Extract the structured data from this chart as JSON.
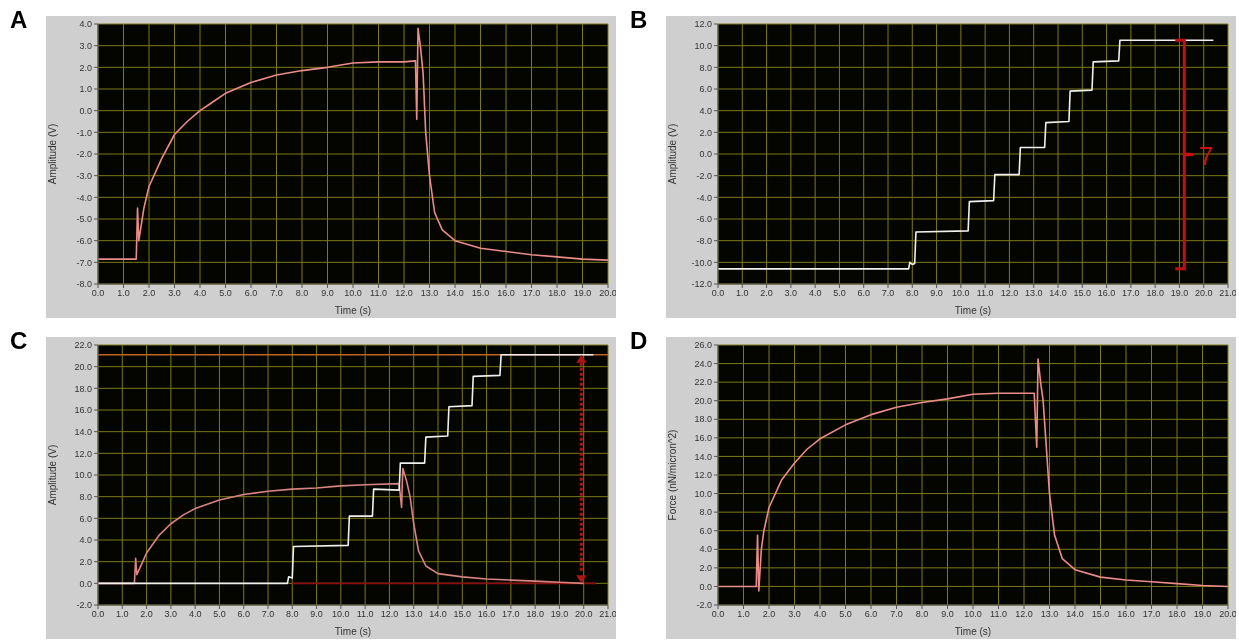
{
  "chart_data": [
    {
      "type": "line",
      "title": "A",
      "xlabel": "Time (s)",
      "ylabel": "Amplitude (V)",
      "grid": true,
      "marker": "none",
      "line_style": "solid",
      "xlim": [
        0,
        20
      ],
      "ylim": [
        -8,
        4
      ],
      "xticks": [
        {
          "value": 0,
          "label": "0.0"
        },
        {
          "value": 1,
          "label": "1.0"
        },
        {
          "value": 2,
          "label": "2.0"
        },
        {
          "value": 3,
          "label": "3.0"
        },
        {
          "value": 4,
          "label": "4.0"
        },
        {
          "value": 5,
          "label": "5.0"
        },
        {
          "value": 6,
          "label": "6.0"
        },
        {
          "value": 7,
          "label": "7.0"
        },
        {
          "value": 8,
          "label": "8.0"
        },
        {
          "value": 9,
          "label": "9.0"
        },
        {
          "value": 10,
          "label": "10.0"
        },
        {
          "value": 11,
          "label": "11.0"
        },
        {
          "value": 12,
          "label": "12.0"
        },
        {
          "value": 13,
          "label": "13.0"
        },
        {
          "value": 14,
          "label": "14.0"
        },
        {
          "value": 15,
          "label": "15.0"
        },
        {
          "value": 16,
          "label": "16.0"
        },
        {
          "value": 17,
          "label": "17.0"
        },
        {
          "value": 18,
          "label": "18.0"
        },
        {
          "value": 19,
          "label": "19.0"
        },
        {
          "value": 20,
          "label": "20.0"
        }
      ],
      "yticks": [
        {
          "value": -8,
          "label": "-8.0"
        },
        {
          "value": -7,
          "label": "-7.0"
        },
        {
          "value": -6,
          "label": "-6.0"
        },
        {
          "value": -5,
          "label": "-5.0"
        },
        {
          "value": -4,
          "label": "-4.0"
        },
        {
          "value": -3,
          "label": "-3.0"
        },
        {
          "value": -2,
          "label": "-2.0"
        },
        {
          "value": -1,
          "label": "-1.0"
        },
        {
          "value": 0,
          "label": "0.0"
        },
        {
          "value": 1,
          "label": "1.0"
        },
        {
          "value": 2,
          "label": "2.0"
        },
        {
          "value": 3,
          "label": "3.0"
        },
        {
          "value": 4,
          "label": "4.0"
        }
      ],
      "series": [
        {
          "color": "#ec8c88",
          "x": [
            0,
            1.5,
            1.55,
            1.6,
            1.8,
            2.0,
            2.5,
            3.0,
            3.5,
            4.0,
            4.5,
            5.0,
            6.0,
            7.0,
            8.0,
            9.0,
            10.0,
            11.0,
            12.0,
            12.45,
            12.5,
            12.55,
            12.65,
            12.75,
            12.85,
            13.0,
            13.2,
            13.5,
            14.0,
            15.0,
            16.0,
            17.0,
            18.0,
            19.0,
            20.0
          ],
          "values": [
            -6.85,
            -6.85,
            -4.5,
            -6.0,
            -4.5,
            -3.5,
            -2.2,
            -1.1,
            -0.5,
            0.0,
            0.4,
            0.8,
            1.3,
            1.65,
            1.85,
            2.0,
            2.2,
            2.25,
            2.25,
            2.3,
            -0.4,
            3.8,
            2.9,
            1.7,
            -1.0,
            -3.0,
            -4.7,
            -5.5,
            -6.0,
            -6.35,
            -6.5,
            -6.65,
            -6.75,
            -6.85,
            -6.9
          ]
        }
      ]
    },
    {
      "type": "line",
      "title": "B",
      "xlabel": "Time (s)",
      "ylabel": "Amplitude (V)",
      "grid": true,
      "marker": "none",
      "line_style": "solid",
      "xlim": [
        0,
        21
      ],
      "ylim": [
        -12,
        12
      ],
      "xticks": [
        {
          "value": 0,
          "label": "0.0"
        },
        {
          "value": 1,
          "label": "1.0"
        },
        {
          "value": 2,
          "label": "2.0"
        },
        {
          "value": 3,
          "label": "3.0"
        },
        {
          "value": 4,
          "label": "4.0"
        },
        {
          "value": 5,
          "label": "5.0"
        },
        {
          "value": 6,
          "label": "6.0"
        },
        {
          "value": 7,
          "label": "7.0"
        },
        {
          "value": 8,
          "label": "8.0"
        },
        {
          "value": 9,
          "label": "9.0"
        },
        {
          "value": 10,
          "label": "10.0"
        },
        {
          "value": 11,
          "label": "11.0"
        },
        {
          "value": 12,
          "label": "12.0"
        },
        {
          "value": 13,
          "label": "13.0"
        },
        {
          "value": 14,
          "label": "14.0"
        },
        {
          "value": 15,
          "label": "15.0"
        },
        {
          "value": 16,
          "label": "16.0"
        },
        {
          "value": 17,
          "label": "17.0"
        },
        {
          "value": 18,
          "label": "18.0"
        },
        {
          "value": 19,
          "label": "19.0"
        },
        {
          "value": 20,
          "label": "20.0"
        },
        {
          "value": 21,
          "label": "21.0"
        }
      ],
      "yticks": [
        {
          "value": -12,
          "label": "-12.0"
        },
        {
          "value": -10,
          "label": "-10.0"
        },
        {
          "value": -8,
          "label": "-8.0"
        },
        {
          "value": -6,
          "label": "-6.0"
        },
        {
          "value": -4,
          "label": "-4.0"
        },
        {
          "value": -2,
          "label": "-2.0"
        },
        {
          "value": 0,
          "label": "0.0"
        },
        {
          "value": 2,
          "label": "2.0"
        },
        {
          "value": 4,
          "label": "4.0"
        },
        {
          "value": 6,
          "label": "6.0"
        },
        {
          "value": 8,
          "label": "8.0"
        },
        {
          "value": 10,
          "label": "10.0"
        },
        {
          "value": 12,
          "label": "12.0"
        }
      ],
      "annotations": [
        "7"
      ],
      "series": [
        {
          "color": "#f0f0f0",
          "x": [
            0,
            7.85,
            7.9,
            8.0,
            8.1,
            8.15,
            10.3,
            10.35,
            11.35,
            11.4,
            12.4,
            12.45,
            13.45,
            13.5,
            14.45,
            14.5,
            15.4,
            15.45,
            16.5,
            16.55,
            20.4
          ],
          "values": [
            -10.6,
            -10.6,
            -10.0,
            -10.2,
            -10.1,
            -7.2,
            -7.1,
            -4.4,
            -4.3,
            -1.9,
            -1.9,
            0.6,
            0.6,
            2.9,
            3.0,
            5.8,
            5.9,
            8.5,
            8.6,
            10.5,
            10.5
          ]
        }
      ]
    },
    {
      "type": "line",
      "title": "C",
      "xlabel": "Time (s)",
      "ylabel": "Amplitude (V)",
      "grid": true,
      "marker": "none",
      "line_style": "solid",
      "xlim": [
        0,
        21
      ],
      "ylim": [
        -2,
        22
      ],
      "xticks": [
        {
          "value": 0,
          "label": "0.0"
        },
        {
          "value": 1,
          "label": "1.0"
        },
        {
          "value": 2,
          "label": "2.0"
        },
        {
          "value": 3,
          "label": "3.0"
        },
        {
          "value": 4,
          "label": "4.0"
        },
        {
          "value": 5,
          "label": "5.0"
        },
        {
          "value": 6,
          "label": "6.0"
        },
        {
          "value": 7,
          "label": "7.0"
        },
        {
          "value": 8,
          "label": "8.0"
        },
        {
          "value": 9,
          "label": "9.0"
        },
        {
          "value": 10,
          "label": "10.0"
        },
        {
          "value": 11,
          "label": "11.0"
        },
        {
          "value": 12,
          "label": "12.0"
        },
        {
          "value": 13,
          "label": "13.0"
        },
        {
          "value": 14,
          "label": "14.0"
        },
        {
          "value": 15,
          "label": "15.0"
        },
        {
          "value": 16,
          "label": "16.0"
        },
        {
          "value": 17,
          "label": "17.0"
        },
        {
          "value": 18,
          "label": "18.0"
        },
        {
          "value": 19,
          "label": "19.0"
        },
        {
          "value": 20,
          "label": "20.0"
        },
        {
          "value": 21,
          "label": "21.0"
        }
      ],
      "yticks": [
        {
          "value": -2,
          "label": "-2.0"
        },
        {
          "value": 0,
          "label": "0.0"
        },
        {
          "value": 2,
          "label": "2.0"
        },
        {
          "value": 4,
          "label": "4.0"
        },
        {
          "value": 6,
          "label": "6.0"
        },
        {
          "value": 8,
          "label": "8.0"
        },
        {
          "value": 10,
          "label": "10.0"
        },
        {
          "value": 12,
          "label": "12.0"
        },
        {
          "value": 14,
          "label": "14.0"
        },
        {
          "value": 16,
          "label": "16.0"
        },
        {
          "value": 18,
          "label": "18.0"
        },
        {
          "value": 20,
          "label": "20.0"
        },
        {
          "value": 22,
          "label": "22.0"
        }
      ],
      "ref_lines": [
        {
          "axis": "y",
          "value": 21.1,
          "color": "#c0641e"
        }
      ],
      "series": [
        {
          "color": "#8b1010",
          "x": [
            8.0,
            20.5
          ],
          "values": [
            0,
            0
          ]
        },
        {
          "color": "#d88480",
          "x": [
            0,
            1.5,
            1.55,
            1.6,
            1.8,
            2.0,
            2.5,
            3.0,
            3.5,
            4.0,
            5.0,
            6.0,
            7.0,
            8.0,
            9.0,
            10.0,
            11.0,
            12.4,
            12.5,
            12.55,
            12.7,
            12.85,
            13.0,
            13.2,
            13.5,
            14.0,
            15.0,
            16.0,
            17.0,
            18.0,
            19.0,
            20.0
          ],
          "values": [
            0,
            0,
            2.3,
            0.8,
            1.8,
            2.8,
            4.4,
            5.5,
            6.3,
            6.9,
            7.7,
            8.2,
            8.5,
            8.7,
            8.8,
            9.0,
            9.1,
            9.2,
            7.0,
            10.6,
            9.5,
            8.0,
            5.5,
            3.0,
            1.6,
            0.9,
            0.6,
            0.4,
            0.3,
            0.2,
            0.1,
            0.0
          ]
        },
        {
          "color": "#f0f0f0",
          "x": [
            0,
            7.8,
            7.85,
            8.0,
            8.05,
            10.3,
            10.35,
            11.3,
            11.35,
            12.4,
            12.45,
            13.45,
            13.5,
            14.4,
            14.45,
            15.4,
            15.45,
            16.55,
            16.6,
            20.4
          ],
          "values": [
            0,
            0,
            0.6,
            0.5,
            3.4,
            3.5,
            6.2,
            6.2,
            8.7,
            8.6,
            11.1,
            11.1,
            13.5,
            13.6,
            16.3,
            16.4,
            19.1,
            19.2,
            21.1,
            21.1
          ]
        }
      ]
    },
    {
      "type": "line",
      "title": "D",
      "xlabel": "Time (s)",
      "ylabel": "Force (nN/micron^2)",
      "grid": true,
      "marker": "none",
      "line_style": "solid",
      "xlim": [
        0,
        20
      ],
      "ylim": [
        -2,
        26
      ],
      "xticks": [
        {
          "value": 0,
          "label": "0.0"
        },
        {
          "value": 1,
          "label": "1.0"
        },
        {
          "value": 2,
          "label": "2.0"
        },
        {
          "value": 3,
          "label": "3.0"
        },
        {
          "value": 4,
          "label": "4.0"
        },
        {
          "value": 5,
          "label": "5.0"
        },
        {
          "value": 6,
          "label": "6.0"
        },
        {
          "value": 7,
          "label": "7.0"
        },
        {
          "value": 8,
          "label": "8.0"
        },
        {
          "value": 9,
          "label": "9.0"
        },
        {
          "value": 10,
          "label": "10.0"
        },
        {
          "value": 11,
          "label": "11.0"
        },
        {
          "value": 12,
          "label": "12.0"
        },
        {
          "value": 13,
          "label": "13.0"
        },
        {
          "value": 14,
          "label": "14.0"
        },
        {
          "value": 15,
          "label": "15.0"
        },
        {
          "value": 16,
          "label": "16.0"
        },
        {
          "value": 17,
          "label": "17.0"
        },
        {
          "value": 18,
          "label": "18.0"
        },
        {
          "value": 19,
          "label": "19.0"
        },
        {
          "value": 20,
          "label": "20.0"
        }
      ],
      "yticks": [
        {
          "value": -2,
          "label": "-2.0"
        },
        {
          "value": 0,
          "label": "0.0"
        },
        {
          "value": 2,
          "label": "2.0"
        },
        {
          "value": 4,
          "label": "4.0"
        },
        {
          "value": 6,
          "label": "6.0"
        },
        {
          "value": 8,
          "label": "8.0"
        },
        {
          "value": 10,
          "label": "10.0"
        },
        {
          "value": 12,
          "label": "12.0"
        },
        {
          "value": 14,
          "label": "14.0"
        },
        {
          "value": 16,
          "label": "16.0"
        },
        {
          "value": 18,
          "label": "18.0"
        },
        {
          "value": 20,
          "label": "20.0"
        },
        {
          "value": 22,
          "label": "22.0"
        },
        {
          "value": 24,
          "label": "24.0"
        },
        {
          "value": 26,
          "label": "26.0"
        }
      ],
      "series": [
        {
          "color": "#ec8c88",
          "x": [
            0,
            1.5,
            1.55,
            1.6,
            1.7,
            1.8,
            2.0,
            2.5,
            3.0,
            3.5,
            4.0,
            5.0,
            6.0,
            7.0,
            8.0,
            9.0,
            10.0,
            11.0,
            12.4,
            12.5,
            12.55,
            12.65,
            12.75,
            12.85,
            13.0,
            13.2,
            13.5,
            14.0,
            15.0,
            16.0,
            17.0,
            18.0,
            19.0,
            20.0
          ],
          "values": [
            0,
            0,
            5.5,
            -0.5,
            4,
            6,
            8.5,
            11.5,
            13.3,
            14.8,
            15.9,
            17.4,
            18.5,
            19.3,
            19.8,
            20.2,
            20.7,
            20.8,
            20.8,
            15.0,
            24.5,
            22.0,
            20.0,
            16.0,
            10.0,
            5.5,
            3.0,
            1.8,
            1.0,
            0.7,
            0.5,
            0.3,
            0.1,
            0.0
          ]
        }
      ]
    }
  ]
}
